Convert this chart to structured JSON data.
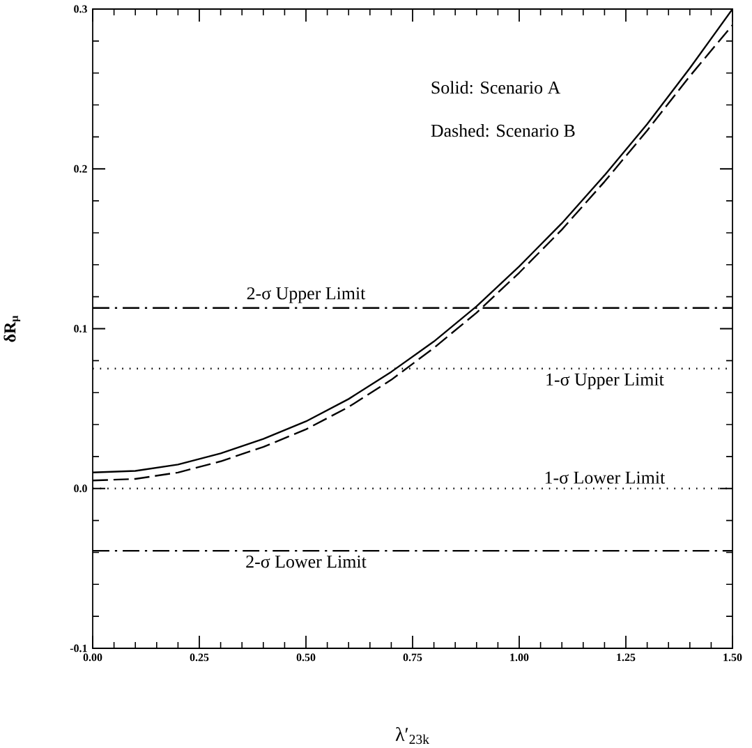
{
  "chart_data": {
    "type": "line",
    "xlabel": "λ′$_{23k}$",
    "ylabel": "δR$_{μ}$",
    "x": [
      0,
      0.1,
      0.2,
      0.3,
      0.4,
      0.5,
      0.6,
      0.7,
      0.8,
      0.9,
      1.0,
      1.1,
      1.2,
      1.3,
      1.4,
      1.5
    ],
    "series": [
      {
        "color": "#000000",
        "line_style": "solid",
        "values": [
          0.01,
          0.011,
          0.015,
          0.022,
          0.031,
          0.042,
          0.056,
          0.073,
          0.092,
          0.114,
          0.139,
          0.166,
          0.196,
          0.228,
          0.263,
          0.3
        ]
      },
      {
        "color": "#000000",
        "line_style": "dashed",
        "values": [
          0.005,
          0.006,
          0.01,
          0.017,
          0.026,
          0.037,
          0.051,
          0.068,
          0.088,
          0.11,
          0.135,
          0.162,
          0.192,
          0.224,
          0.258,
          0.29
        ]
      }
    ],
    "xlim": [
      0,
      1.5
    ],
    "ylim": [
      -0.1,
      0.3
    ],
    "xticks": [
      {
        "value": 0,
        "label": "0.00"
      },
      {
        "value": 0.25,
        "label": "0.25"
      },
      {
        "value": 0.5,
        "label": "0.50"
      },
      {
        "value": 0.75,
        "label": "0.75"
      },
      {
        "value": 1.0,
        "label": "1.00"
      },
      {
        "value": 1.25,
        "label": "1.25"
      },
      {
        "value": 1.5,
        "label": "1.50"
      }
    ],
    "yticks": [
      {
        "value": -0.1,
        "label": "-0.1"
      },
      {
        "value": 0,
        "label": "0.0"
      },
      0.1,
      0.2,
      0.3
    ],
    "ref_lines": [
      {
        "axis": "y",
        "value": 0.113,
        "label": "2-σ Upper Limit",
        "line_style": "dashdot"
      },
      {
        "axis": "y",
        "value": 0.075,
        "label": "1-σ Upper Limit",
        "line_style": "dotted"
      },
      {
        "axis": "y",
        "value": 0.0,
        "label": "1-σ Lower Limit",
        "line_style": "dotted"
      },
      {
        "axis": "y",
        "value": -0.039,
        "label": "2-σ Lower Limit",
        "line_style": "dashdot"
      }
    ],
    "annotations": [
      "Solid:  Scenario A",
      "Dashed: Scenario B"
    ],
    "grid": false,
    "marker": "none"
  }
}
